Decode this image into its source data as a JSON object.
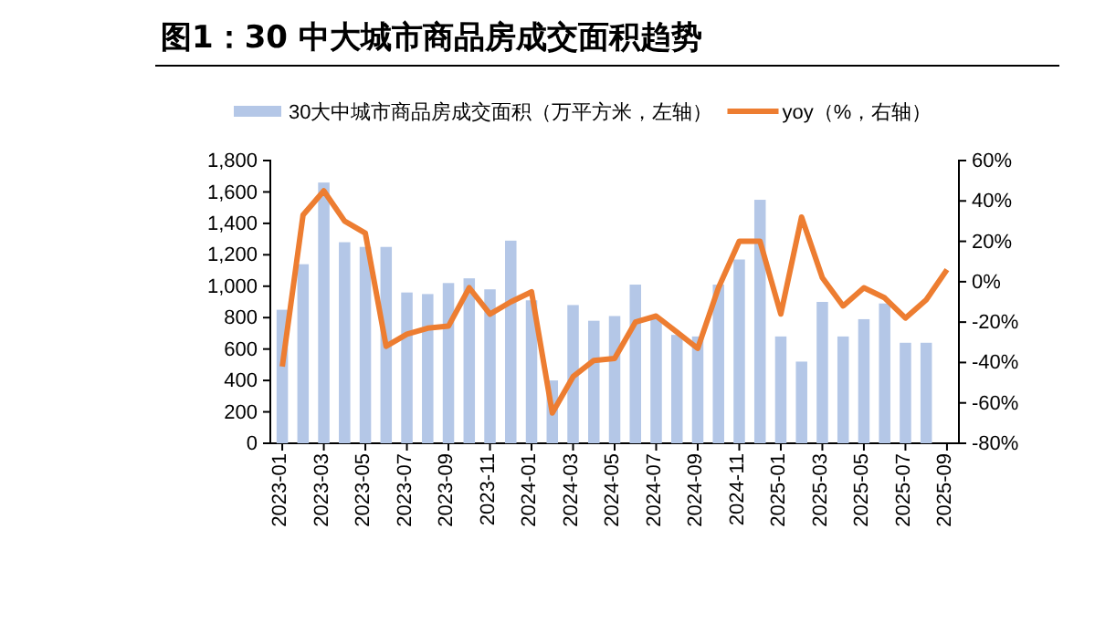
{
  "chart_data": {
    "type": "bar",
    "title": "图1：30 中大城市商品房成交面积趋势",
    "categories": [
      "2023-01",
      null,
      "2023-03",
      null,
      "2023-05",
      null,
      "2023-07",
      null,
      "2023-09",
      null,
      "2023-11",
      null,
      "2024-01",
      null,
      "2024-03",
      null,
      "2024-05",
      null,
      "2024-07",
      null,
      "2024-09",
      null,
      "2024-11",
      null,
      "2025-01",
      null,
      "2025-03",
      null,
      "2025-05",
      null,
      "2025-07",
      null,
      "2025-09"
    ],
    "series": [
      {
        "name": "30大中城市商品房成交面积（万平方米，左轴）",
        "color": "#b4c7e7",
        "values": [
          850,
          1140,
          1660,
          1280,
          1250,
          1250,
          960,
          950,
          1020,
          1050,
          980,
          1290,
          910,
          400,
          880,
          780,
          810,
          1010,
          790,
          690,
          680,
          1010,
          1170,
          1550,
          680,
          520,
          900,
          680,
          790,
          890,
          640,
          640,
          null
        ]
      },
      {
        "name": "yoy（%，右轴）",
        "type": "line",
        "axis": "y2",
        "color": "#ed7d31",
        "values": [
          -42,
          33,
          45,
          30,
          24,
          -32,
          -26,
          -23,
          -22,
          -3,
          -16,
          -10,
          -5,
          -65,
          -47,
          -39,
          -38,
          -20,
          -17,
          -25,
          -33,
          -3,
          20,
          20,
          -16,
          32,
          2,
          -12,
          -3,
          -8,
          -18,
          -9,
          6
        ]
      }
    ],
    "ylim": [
      0,
      1800
    ],
    "yticks": [
      {
        "value": 0,
        "label": "0"
      },
      {
        "value": 200,
        "label": "200"
      },
      {
        "value": 400,
        "label": "400"
      },
      {
        "value": 600,
        "label": "600"
      },
      {
        "value": 800,
        "label": "800"
      },
      {
        "value": 1000,
        "label": "1,000"
      },
      {
        "value": 1200,
        "label": "1,200"
      },
      {
        "value": 1400,
        "label": "1,400"
      },
      {
        "value": 1600,
        "label": "1,600"
      },
      {
        "value": 1800,
        "label": "1,800"
      }
    ],
    "y2lim": [
      -80,
      60
    ],
    "y2ticks": [
      {
        "value": -80,
        "label": "-80%"
      },
      {
        "value": -60,
        "label": "-60%"
      },
      {
        "value": -40,
        "label": "-40%"
      },
      {
        "value": -20,
        "label": "-20%"
      },
      {
        "value": 0,
        "label": "0%"
      },
      {
        "value": 20,
        "label": "20%"
      },
      {
        "value": 40,
        "label": "40%"
      },
      {
        "value": 60,
        "label": "60%"
      }
    ],
    "legend": "top",
    "grid": false
  }
}
